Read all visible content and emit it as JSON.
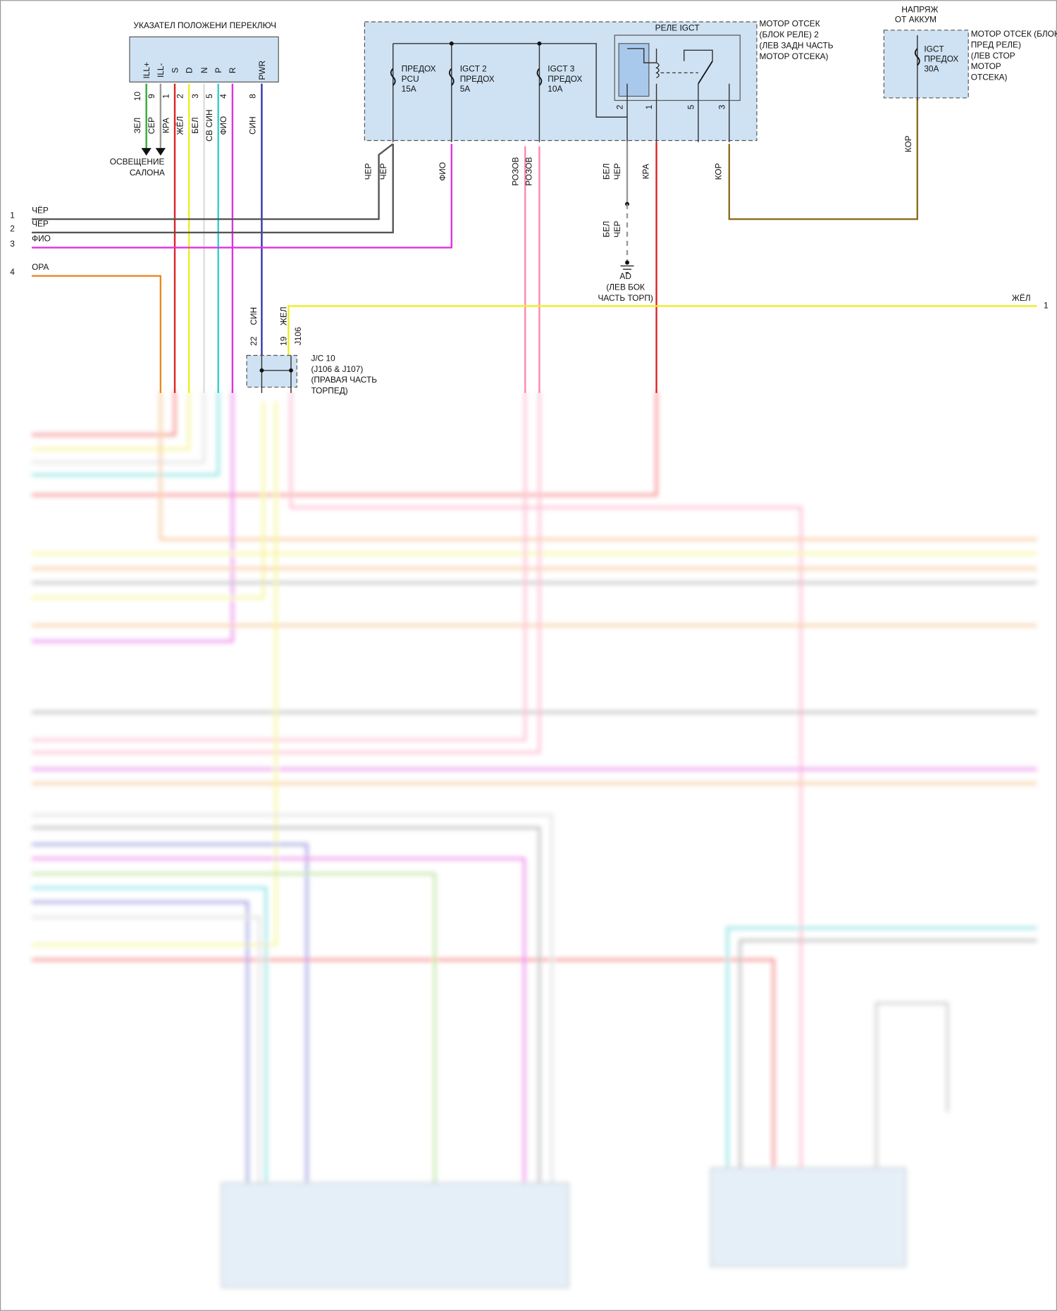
{
  "switch": {
    "title": "УКАЗАТЕЛ ПОЛОЖЕНИ ПЕРЕКЛЮЧ",
    "pins": [
      {
        "label": "ILL+",
        "number": "10",
        "wire": "ЗЕЛ"
      },
      {
        "label": "ILL-",
        "number": "9",
        "wire": "СЕР"
      },
      {
        "label": "S",
        "number": "1",
        "wire": "КРА"
      },
      {
        "label": "D",
        "number": "2",
        "wire": "ЖЁЛ"
      },
      {
        "label": "N",
        "number": "3",
        "wire": "БЕЛ"
      },
      {
        "label": "P",
        "number": "5",
        "wire": "СВ СИН"
      },
      {
        "label": "R",
        "number": "4",
        "wire": "ФИО"
      },
      {
        "label": "PWR",
        "number": "8",
        "wire": "СИН"
      }
    ]
  },
  "lighting": [
    "ОСВЕЩЕНИЕ",
    "САЛОНА"
  ],
  "relay_block": {
    "name": [
      "МОТОР ОТСЕК",
      "(БЛОК РЕЛЕ) 2",
      "(ЛЕВ ЗАДН ЧАСТЬ",
      "МОТОР ОТСЕКА)"
    ],
    "fuses": [
      [
        "ПРЕДОХ",
        "PCU",
        "15A"
      ],
      [
        "IGCT 2",
        "ПРЕДОХ",
        "5A"
      ],
      [
        "IGCT 3",
        "ПРЕДОХ",
        "10A"
      ]
    ],
    "relay": "РЕЛЕ IGCT",
    "relay_pins": [
      "2",
      "1",
      "5",
      "3"
    ],
    "wires": [
      "ЧЕР",
      "ЧЕР",
      "ФИО",
      "РОЗОВ",
      "РОЗОВ",
      "КРА",
      "КОР"
    ]
  },
  "battery": {
    "title": [
      "НАПРЯЖ",
      "ОТ АККУМ"
    ],
    "block": [
      "МОТОР ОТСЕК (БЛОК",
      "ПРЕД РЕЛЕ)",
      "(ЛЕВ СТОР",
      "МОТОР",
      "ОТСЕКА)"
    ],
    "fuse": [
      "IGCT",
      "ПРЕДОХ",
      "30A"
    ],
    "wire": "КОР"
  },
  "inputs": [
    {
      "number": "1",
      "wire": "ЧЁР"
    },
    {
      "number": "2",
      "wire": "ЧЁР"
    },
    {
      "number": "3",
      "wire": "ФИО"
    },
    {
      "number": "4",
      "wire": "ОРА"
    }
  ],
  "ground": {
    "wire_top": [
      "БЕЛ",
      "ЧЕР"
    ],
    "wire_bottom": [
      "БЕЛ",
      "ЧЕР"
    ],
    "name": [
      "AD",
      "(ЛЕВ БОК",
      "ЧАСТЬ ТОРП)"
    ]
  },
  "output": {
    "wire": "ЖЁЛ",
    "number": "1"
  },
  "junction": {
    "wires": [
      "СИН",
      "ЖЕЛ"
    ],
    "pins": [
      "22",
      "19"
    ],
    "connector": "J106",
    "name": [
      "J/C 10",
      "(J106 & J107)",
      "(ПРАВАЯ ЧАСТЬ",
      "ТОРПЕД)"
    ]
  }
}
